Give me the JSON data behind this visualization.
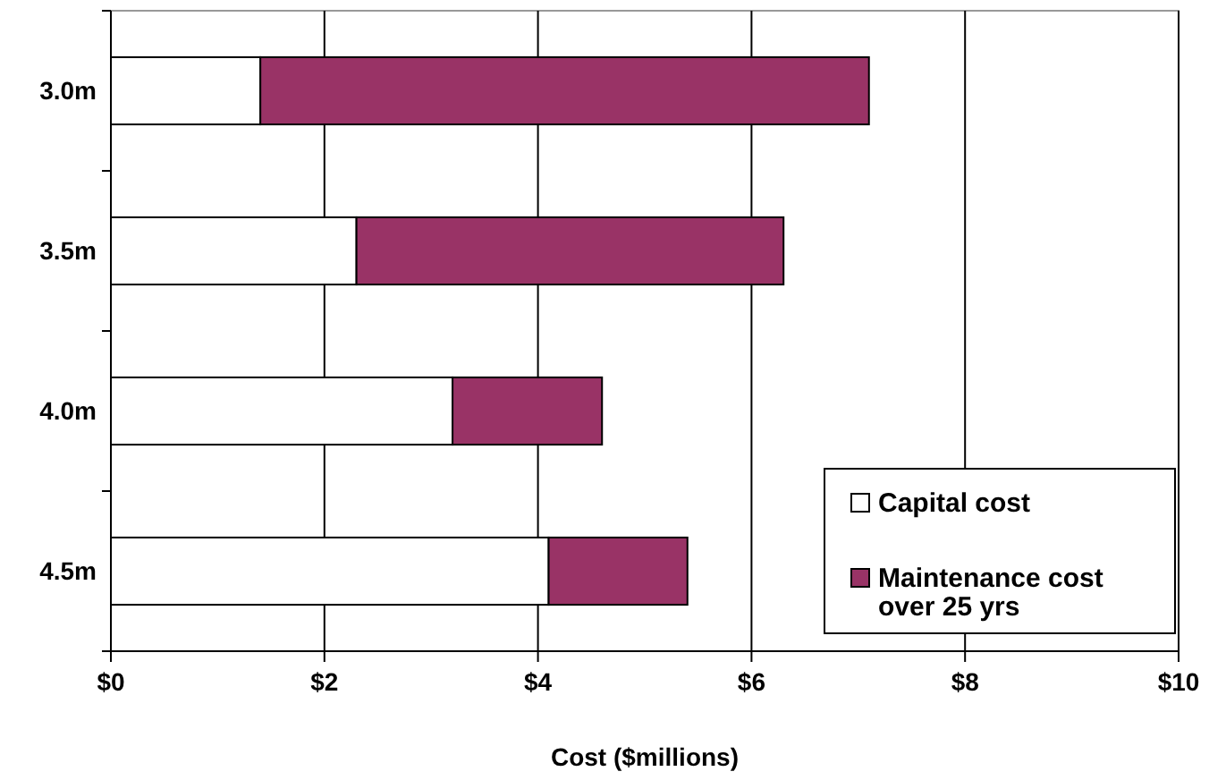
{
  "chart_data": {
    "type": "bar",
    "orientation": "horizontal",
    "stacked": true,
    "xlabel": "Cost ($millions)",
    "categories": [
      "3.0m",
      "3.5m",
      "4.0m",
      "4.5m"
    ],
    "series": [
      {
        "name": "Capital cost",
        "color": "#ffffff",
        "values": [
          1.4,
          2.3,
          3.2,
          4.1
        ]
      },
      {
        "name": "Maintenance cost over 25 yrs",
        "color": "#993366",
        "values": [
          5.7,
          4.0,
          1.4,
          1.3
        ]
      }
    ],
    "xlim": [
      0,
      10
    ],
    "xticks": [
      {
        "value": 0,
        "label": "$0"
      },
      {
        "value": 2,
        "label": "$2"
      },
      {
        "value": 4,
        "label": "$4"
      },
      {
        "value": 6,
        "label": "$6"
      },
      {
        "value": 8,
        "label": "$8"
      },
      {
        "value": 10,
        "label": "$10"
      }
    ],
    "grid": "x",
    "legend": "bottom right"
  }
}
